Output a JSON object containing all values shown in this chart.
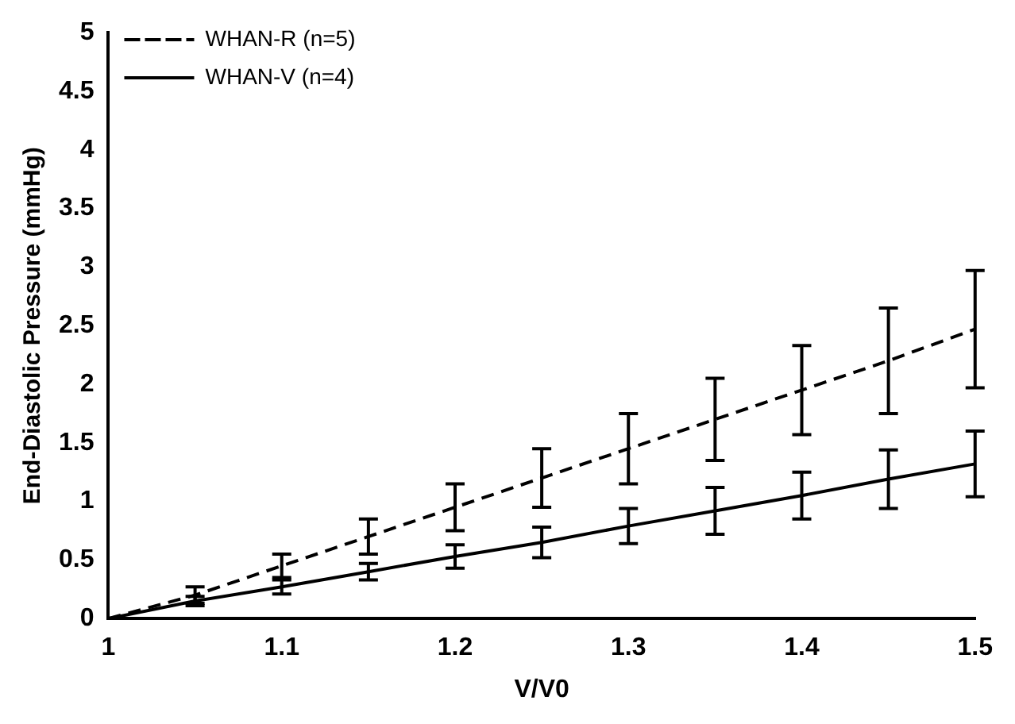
{
  "chart_data": {
    "type": "line",
    "xlabel": "V/V0",
    "ylabel": "End-Diastolic Pressure (mmHg)",
    "x": [
      1,
      1.05,
      1.1,
      1.15,
      1.2,
      1.25,
      1.3,
      1.35,
      1.4,
      1.45,
      1.5
    ],
    "series": [
      {
        "name": "WHAN-R (n=5)",
        "color": "#000000",
        "line_style": "dashed",
        "values": [
          0,
          0.2,
          0.45,
          0.7,
          0.95,
          1.2,
          1.45,
          1.7,
          1.95,
          2.2,
          2.47
        ],
        "errors": [
          null,
          0.07,
          0.1,
          0.15,
          0.2,
          0.25,
          0.3,
          0.35,
          0.38,
          0.45,
          0.5
        ]
      },
      {
        "name": "WHAN-V (n=4)",
        "color": "#000000",
        "line_style": "solid",
        "values": [
          0,
          0.15,
          0.27,
          0.4,
          0.53,
          0.65,
          0.79,
          0.92,
          1.05,
          1.19,
          1.32
        ],
        "errors": [
          null,
          0.04,
          0.06,
          0.07,
          0.1,
          0.13,
          0.15,
          0.2,
          0.2,
          0.25,
          0.28
        ]
      }
    ],
    "xlim": [
      1,
      1.5
    ],
    "xticks": [
      1,
      1.1,
      1.2,
      1.3,
      1.4,
      1.5
    ],
    "ylim": [
      0,
      5
    ],
    "yticks": [
      0,
      0.5,
      1,
      1.5,
      2,
      2.5,
      3,
      3.5,
      4,
      4.5,
      5
    ],
    "legend": "top left",
    "marker": "none",
    "grid": false
  }
}
